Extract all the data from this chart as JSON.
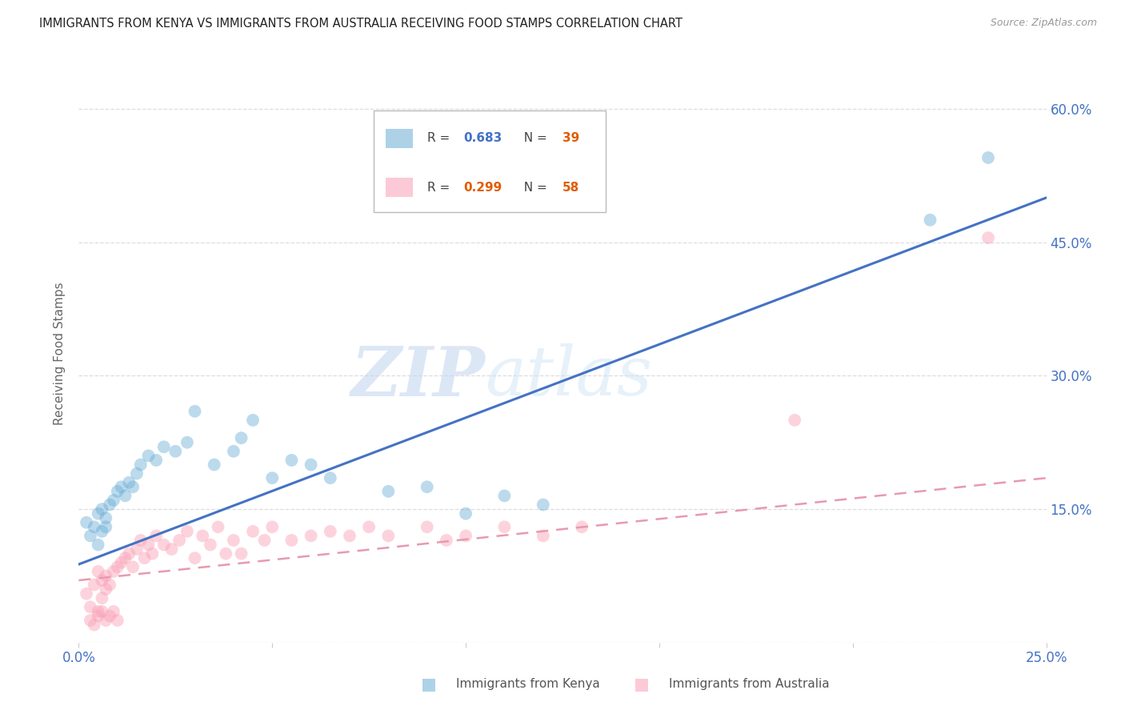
{
  "title": "IMMIGRANTS FROM KENYA VS IMMIGRANTS FROM AUSTRALIA RECEIVING FOOD STAMPS CORRELATION CHART",
  "source": "Source: ZipAtlas.com",
  "ylabel": "Receiving Food Stamps",
  "xlim": [
    0.0,
    0.25
  ],
  "ylim": [
    0.0,
    0.65
  ],
  "xticks": [
    0.0,
    0.05,
    0.1,
    0.15,
    0.2,
    0.25
  ],
  "yticks": [
    0.15,
    0.3,
    0.45,
    0.6
  ],
  "ytick_labels": [
    "15.0%",
    "30.0%",
    "45.0%",
    "60.0%"
  ],
  "xtick_labels": [
    "0.0%",
    "",
    "",
    "",
    "",
    "25.0%"
  ],
  "kenya_color": "#6baed6",
  "australia_color": "#fa9fb5",
  "kenya_R": "0.683",
  "kenya_N": "39",
  "australia_R": "0.299",
  "australia_N": "58",
  "kenya_scatter_x": [
    0.002,
    0.003,
    0.004,
    0.005,
    0.005,
    0.006,
    0.006,
    0.007,
    0.007,
    0.008,
    0.009,
    0.01,
    0.011,
    0.012,
    0.013,
    0.014,
    0.015,
    0.016,
    0.018,
    0.02,
    0.022,
    0.025,
    0.028,
    0.03,
    0.035,
    0.04,
    0.042,
    0.045,
    0.05,
    0.055,
    0.06,
    0.065,
    0.08,
    0.09,
    0.1,
    0.11,
    0.12,
    0.22,
    0.235
  ],
  "kenya_scatter_y": [
    0.135,
    0.12,
    0.13,
    0.11,
    0.145,
    0.125,
    0.15,
    0.13,
    0.14,
    0.155,
    0.16,
    0.17,
    0.175,
    0.165,
    0.18,
    0.175,
    0.19,
    0.2,
    0.21,
    0.205,
    0.22,
    0.215,
    0.225,
    0.26,
    0.2,
    0.215,
    0.23,
    0.25,
    0.185,
    0.205,
    0.2,
    0.185,
    0.17,
    0.175,
    0.145,
    0.165,
    0.155,
    0.475,
    0.545
  ],
  "australia_scatter_x": [
    0.002,
    0.003,
    0.004,
    0.005,
    0.005,
    0.006,
    0.006,
    0.007,
    0.007,
    0.008,
    0.009,
    0.01,
    0.011,
    0.012,
    0.013,
    0.014,
    0.015,
    0.016,
    0.017,
    0.018,
    0.019,
    0.02,
    0.022,
    0.024,
    0.026,
    0.028,
    0.03,
    0.032,
    0.034,
    0.036,
    0.038,
    0.04,
    0.042,
    0.045,
    0.048,
    0.05,
    0.055,
    0.06,
    0.065,
    0.07,
    0.075,
    0.08,
    0.09,
    0.095,
    0.1,
    0.11,
    0.12,
    0.13,
    0.185,
    0.235,
    0.003,
    0.004,
    0.005,
    0.006,
    0.007,
    0.008,
    0.009,
    0.01
  ],
  "australia_scatter_y": [
    0.055,
    0.04,
    0.065,
    0.035,
    0.08,
    0.05,
    0.07,
    0.06,
    0.075,
    0.065,
    0.08,
    0.085,
    0.09,
    0.095,
    0.1,
    0.085,
    0.105,
    0.115,
    0.095,
    0.11,
    0.1,
    0.12,
    0.11,
    0.105,
    0.115,
    0.125,
    0.095,
    0.12,
    0.11,
    0.13,
    0.1,
    0.115,
    0.1,
    0.125,
    0.115,
    0.13,
    0.115,
    0.12,
    0.125,
    0.12,
    0.13,
    0.12,
    0.13,
    0.115,
    0.12,
    0.13,
    0.12,
    0.13,
    0.25,
    0.455,
    0.025,
    0.02,
    0.03,
    0.035,
    0.025,
    0.03,
    0.035,
    0.025
  ],
  "kenya_trendline_x": [
    0.0,
    0.25
  ],
  "kenya_trendline_y": [
    0.088,
    0.5
  ],
  "australia_trendline_x": [
    0.0,
    0.25
  ],
  "australia_trendline_y": [
    0.07,
    0.185
  ],
  "watermark_zip": "ZIP",
  "watermark_atlas": "atlas",
  "background_color": "#ffffff",
  "grid_color": "#dddddd",
  "title_color": "#222222",
  "axis_label_color": "#666666",
  "tick_label_color": "#4472c4",
  "kenya_line_color": "#4472c4",
  "australia_line_color": "#e899b0",
  "marker_size": 130,
  "marker_alpha": 0.45,
  "legend_kenya_R_color": "#4472c4",
  "legend_N_color": "#e05c00",
  "legend_aus_R_color": "#e05c00"
}
